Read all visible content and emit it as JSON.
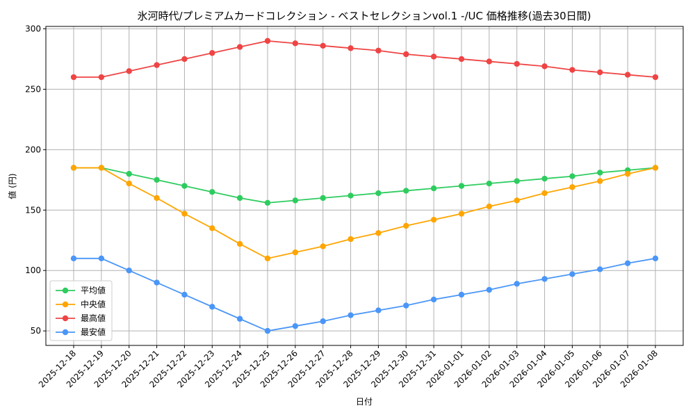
{
  "chart_data": {
    "type": "line",
    "title": "氷河時代/プレミアムカードコレクション - ベストセレクションvol.1 -/UC 価格推移(過去30日間)",
    "xlabel": "日付",
    "ylabel": "値 (円)",
    "ylim": [
      38,
      302
    ],
    "yticks": [
      50,
      100,
      150,
      200,
      250,
      300
    ],
    "grid": true,
    "legend_position": "bottom-left",
    "categories": [
      "2025-12-18",
      "2025-12-19",
      "2025-12-20",
      "2025-12-21",
      "2025-12-22",
      "2025-12-23",
      "2025-12-24",
      "2025-12-25",
      "2025-12-26",
      "2025-12-27",
      "2025-12-28",
      "2025-12-29",
      "2025-12-30",
      "2025-12-31",
      "2026-01-01",
      "2026-01-02",
      "2026-01-03",
      "2026-01-04",
      "2026-01-05",
      "2026-01-06",
      "2026-01-07",
      "2026-01-08"
    ],
    "series": [
      {
        "name": "平均値",
        "color": "#2ecc5f",
        "values": [
          185,
          185,
          180,
          175,
          170,
          165,
          160,
          156,
          158,
          160,
          162,
          164,
          166,
          168,
          170,
          172,
          174,
          176,
          178,
          181,
          183,
          185
        ]
      },
      {
        "name": "中央値",
        "color": "#ffa500",
        "values": [
          185,
          185,
          172,
          160,
          147,
          135,
          122,
          110,
          115,
          120,
          126,
          131,
          137,
          142,
          147,
          153,
          158,
          164,
          169,
          174,
          180,
          185
        ]
      },
      {
        "name": "最高値",
        "color": "#ef4444",
        "values": [
          260,
          260,
          265,
          270,
          275,
          280,
          285,
          290,
          288,
          286,
          284,
          282,
          279,
          277,
          275,
          273,
          271,
          269,
          266,
          264,
          262,
          260
        ]
      },
      {
        "name": "最安値",
        "color": "#4a96f8",
        "values": [
          110,
          110,
          100,
          90,
          80,
          70,
          60,
          50,
          54,
          58,
          63,
          67,
          71,
          76,
          80,
          84,
          89,
          93,
          97,
          101,
          106,
          110
        ]
      }
    ]
  }
}
